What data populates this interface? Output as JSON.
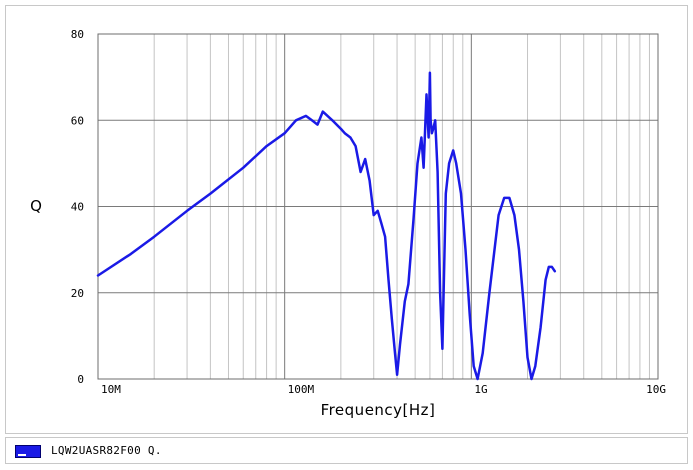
{
  "chart_data": {
    "type": "line",
    "title": "",
    "xlabel": "Frequency[Hz]",
    "ylabel": "Q",
    "x_scale": "log",
    "xlim": [
      10000000,
      10000000000
    ],
    "ylim": [
      0,
      80
    ],
    "x_tick_labels": [
      {
        "value": 10000000,
        "label": "10M"
      },
      {
        "value": 100000000,
        "label": "100M"
      },
      {
        "value": 1000000000,
        "label": "1G"
      },
      {
        "value": 10000000000,
        "label": "10G"
      }
    ],
    "y_ticks": [
      0,
      20,
      40,
      60,
      80
    ],
    "grid": true,
    "legend_position": "bottom",
    "series": [
      {
        "name": "LQW2UASR82F00 Q.",
        "color": "#1a1ae6",
        "x": [
          10000000,
          15000000,
          20000000,
          30000000,
          40000000,
          60000000,
          80000000,
          100000000,
          115000000,
          130000000,
          140000000,
          150000000,
          160000000,
          180000000,
          200000000,
          210000000,
          225000000,
          240000000,
          255000000,
          270000000,
          285000000,
          300000000,
          315000000,
          330000000,
          345000000,
          360000000,
          375000000,
          390000000,
          400000000,
          415000000,
          440000000,
          460000000,
          490000000,
          515000000,
          540000000,
          555000000,
          575000000,
          590000000,
          600000000,
          605000000,
          615000000,
          625000000,
          640000000,
          660000000,
          680000000,
          700000000,
          710000000,
          730000000,
          760000000,
          800000000,
          830000000,
          880000000,
          930000000,
          980000000,
          1030000000,
          1080000000,
          1150000000,
          1250000000,
          1400000000,
          1500000000,
          1600000000,
          1700000000,
          1800000000,
          1900000000,
          2000000000,
          2100000000,
          2200000000,
          2350000000,
          2500000000,
          2600000000,
          2700000000,
          2800000000
        ],
        "values": [
          24,
          29,
          33,
          39,
          43,
          49,
          54,
          57,
          60,
          61,
          60,
          59,
          62,
          60,
          58,
          57,
          56,
          54,
          48,
          51,
          46,
          38,
          39,
          36,
          33,
          23,
          14,
          6,
          1,
          8,
          18,
          22,
          37,
          50,
          56,
          49,
          66,
          56,
          71,
          60,
          57,
          58,
          60,
          48,
          20,
          7,
          20,
          43,
          50,
          53,
          50,
          43,
          30,
          15,
          3,
          0,
          6,
          20,
          38,
          42,
          42,
          38,
          30,
          18,
          5,
          0,
          3,
          12,
          23,
          26,
          26,
          25
        ]
      }
    ]
  }
}
